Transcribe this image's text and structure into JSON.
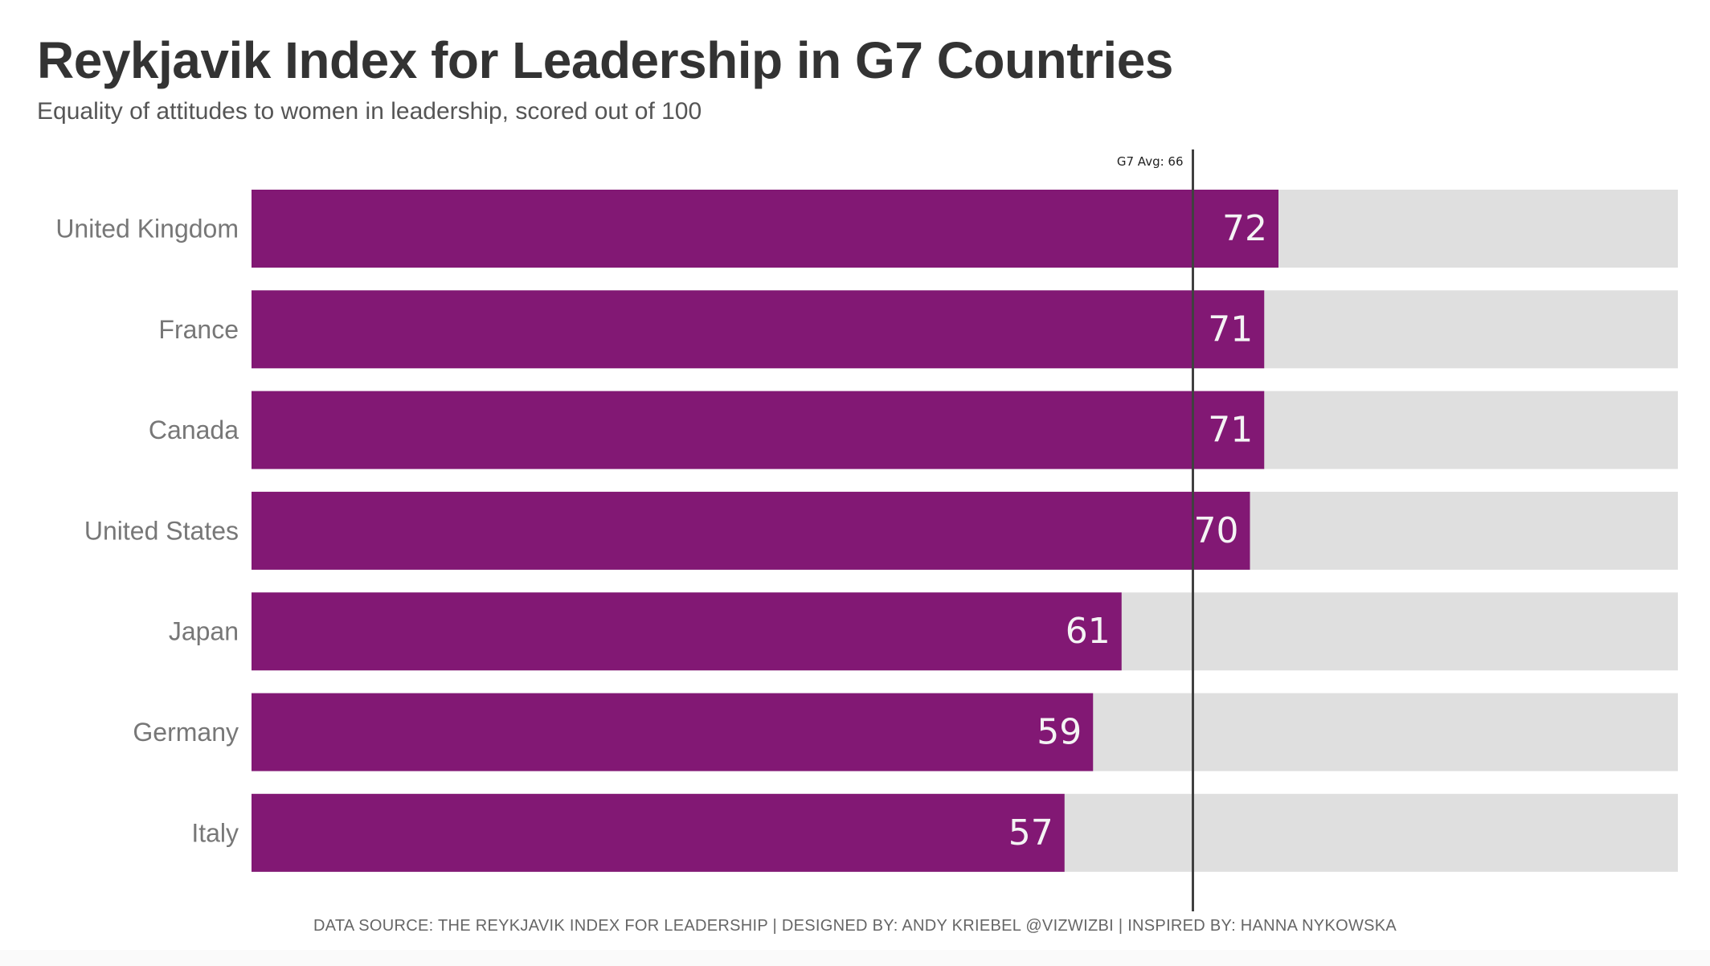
{
  "title": "Reykjavik Index for Leadership in G7 Countries",
  "subtitle": "Equality of attitudes to women in leadership, scored out of 100",
  "footer": "DATA SOURCE: THE REYKJAVIK INDEX FOR LEADERSHIP  |  DESIGNED BY: ANDY KRIEBEL @VIZWIZBI  |  INSPIRED BY: HANNA NYKOWSKA",
  "colors": {
    "bar": "#821874",
    "track": "#dfdfdf",
    "value_label": "#f4f4f4",
    "category_label": "#777777",
    "reference_line": "#404040",
    "reference_label": "#222222"
  },
  "chart_data": {
    "type": "bar",
    "orientation": "horizontal",
    "categories": [
      "United Kingdom",
      "France",
      "Canada",
      "United States",
      "Japan",
      "Germany",
      "Italy"
    ],
    "values": [
      72,
      71,
      71,
      70,
      61,
      59,
      57
    ],
    "xlim": [
      0,
      100
    ],
    "reference_line": {
      "label": "G7 Avg: 66",
      "value": 66
    },
    "grid": false,
    "legend": "none"
  }
}
